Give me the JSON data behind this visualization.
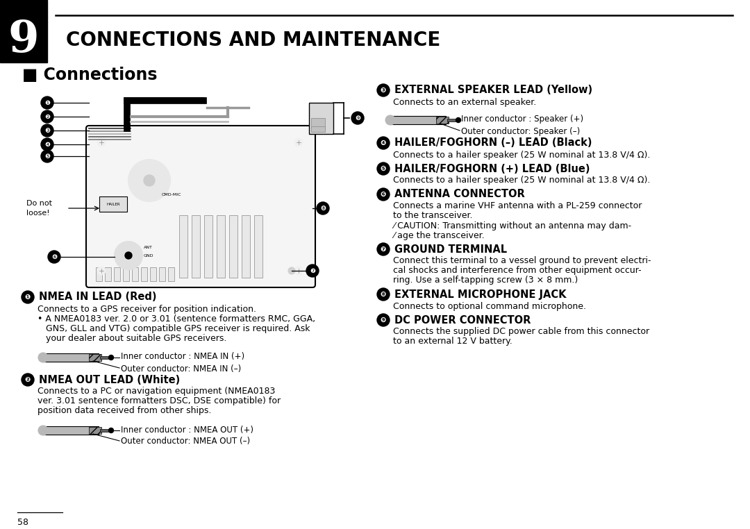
{
  "page_bg": "#ffffff",
  "chapter_num": "9",
  "chapter_title": "CONNECTIONS AND MAINTENANCE",
  "section_title": "■ Connections",
  "page_number": "58",
  "left_items": [
    {
      "num_char": "❶",
      "title": "NMEA IN LEAD (Red)",
      "body_lines": [
        "Connects to a GPS receiver for position indication.",
        "• A NMEA0183 ver. 2.0 or 3.01 (sentence formatters RMC, GGA,",
        "   GNS, GLL and VTG) compatible GPS receiver is required. Ask",
        "   your dealer about suitable GPS receivers."
      ],
      "cable": true,
      "cable_outer": "Outer conductor: NMEA IN (–)",
      "cable_inner": "Inner conductor : NMEA IN (+)"
    },
    {
      "num_char": "❷",
      "title": "NMEA OUT LEAD (White)",
      "body_lines": [
        "Connects to a PC or navigation equipment (NMEA0183",
        "ver. 3.01 sentence formatters DSC, DSE compatible) for",
        "position data received from other ships."
      ],
      "cable": true,
      "cable_outer": "Outer conductor: NMEA OUT (–)",
      "cable_inner": "Inner conductor : NMEA OUT (+)"
    }
  ],
  "right_items": [
    {
      "num_char": "❸",
      "title": "EXTERNAL SPEAKER LEAD (Yellow)",
      "body_lines": [
        "Connects to an external speaker."
      ],
      "cable": true,
      "cable_outer": "Outer conductor: Speaker (–)",
      "cable_inner": "Inner conductor : Speaker (+)"
    },
    {
      "num_char": "❹",
      "title": "HAILER/FOGHORN (–) LEAD (Black)",
      "body_lines": [
        "Connects to a hailer speaker (25 W nominal at 13.8 V/4 Ω)."
      ],
      "cable": false
    },
    {
      "num_char": "❺",
      "title": "HAILER/FOGHORN (+) LEAD (Blue)",
      "body_lines": [
        "Connects to a hailer speaker (25 W nominal at 13.8 V/4 Ω)."
      ],
      "cable": false
    },
    {
      "num_char": "❻",
      "title": "ANTENNA CONNECTOR",
      "body_lines": [
        "Connects a marine VHF antenna with a PL-259 connector",
        "to the transceiver.",
        "⁄ CAUTION: Transmitting without an antenna may dam-",
        "⁄ age the transceiver."
      ],
      "cable": false
    },
    {
      "num_char": "❼",
      "title": "GROUND TERMINAL",
      "body_lines": [
        "Connect this terminal to a vessel ground to prevent electri-",
        "cal shocks and interference from other equipment occur-",
        "ring. Use a self-tapping screw (3 × 8 mm.)"
      ],
      "cable": false
    },
    {
      "num_char": "❽",
      "title": "EXTERNAL MICROPHONE JACK",
      "body_lines": [
        "Connects to optional command microphone."
      ],
      "cable": false
    },
    {
      "num_char": "❾",
      "title": "DC POWER CONNECTOR",
      "body_lines": [
        "Connects the supplied DC power cable from this connector",
        "to an external 12 V battery."
      ],
      "cable": false
    }
  ]
}
